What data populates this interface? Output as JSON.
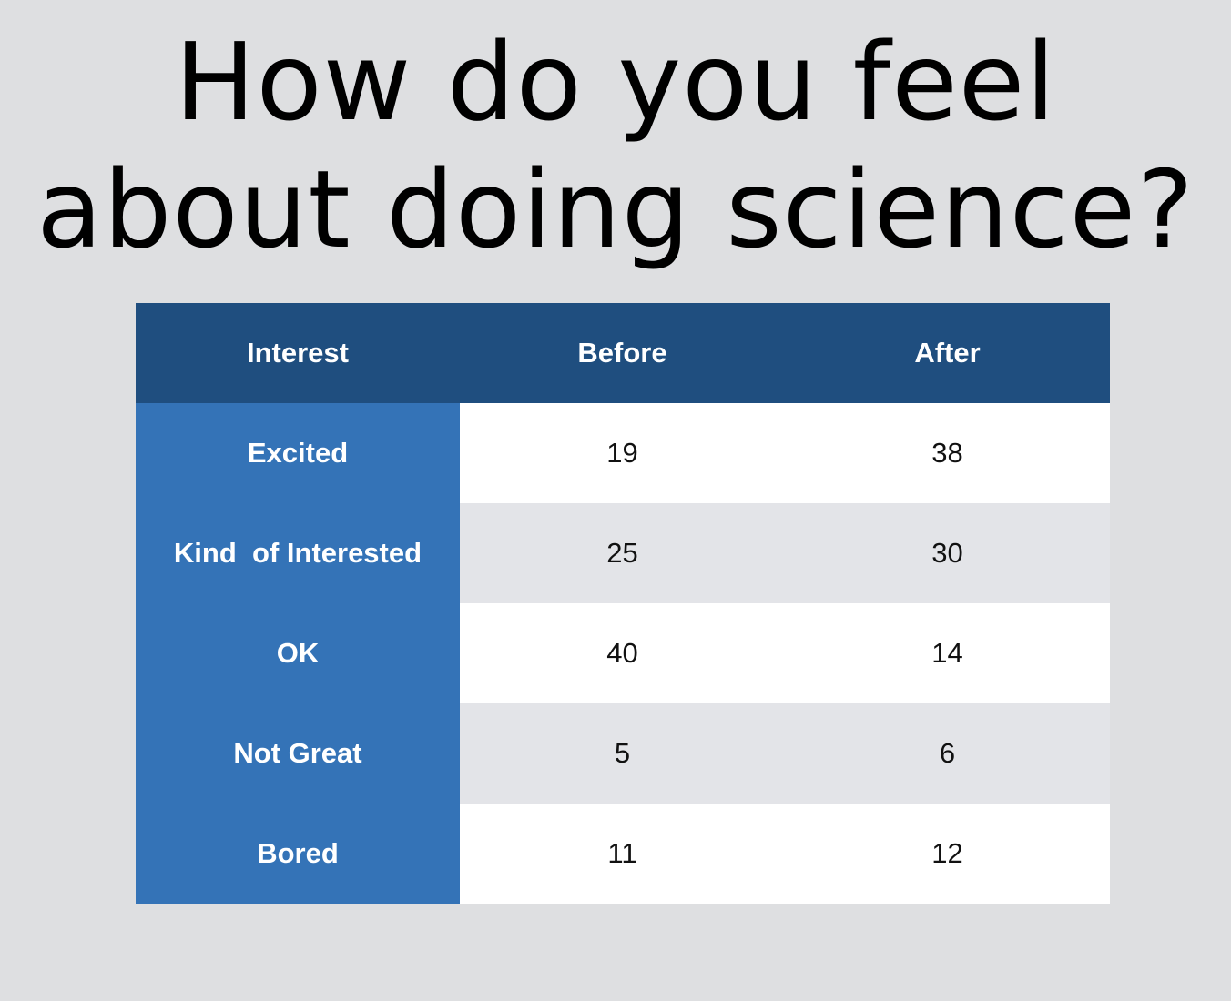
{
  "title_lines": [
    "How do you feel",
    "about doing science?"
  ],
  "colors": {
    "background": "#dedfe1",
    "header": "#1f4e7f",
    "label_column": "#3473b7",
    "row_white": "#ffffff",
    "row_gray": "#e3e4e8"
  },
  "chart_data": {
    "type": "table",
    "title": "How do you feel about doing science?",
    "columns": [
      "Interest",
      "Before",
      "After"
    ],
    "rows": [
      {
        "interest": "Excited",
        "before": "19",
        "after": "38"
      },
      {
        "interest": "Kind  of Interested",
        "before": "25",
        "after": "30"
      },
      {
        "interest": "OK",
        "before": "40",
        "after": "14"
      },
      {
        "interest": "Not Great",
        "before": "5",
        "after": "6"
      },
      {
        "interest": "Bored",
        "before": "11",
        "after": "12"
      }
    ]
  }
}
